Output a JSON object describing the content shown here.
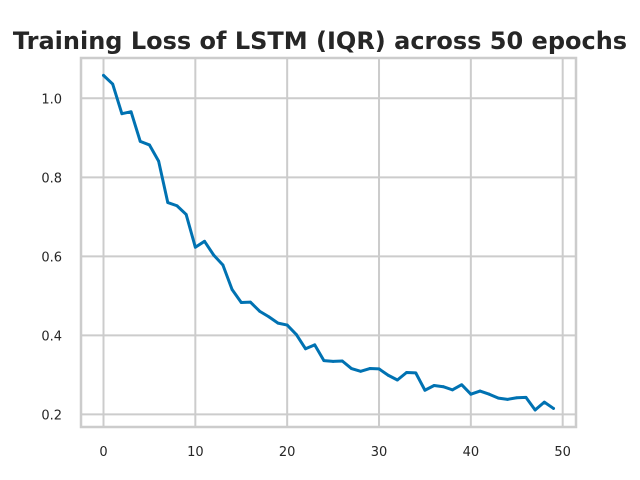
{
  "chart_data": {
    "type": "line",
    "title": "Training Loss of LSTM (IQR) across 50 epochs",
    "xlabel": "",
    "ylabel": "",
    "xlim": [
      -2.45,
      51.45
    ],
    "ylim": [
      0.168,
      1.102
    ],
    "xticks": [
      0,
      10,
      20,
      30,
      40,
      50
    ],
    "yticks": [
      0.2,
      0.4,
      0.6,
      0.8,
      1.0
    ],
    "xtick_labels": [
      "0",
      "10",
      "20",
      "30",
      "40",
      "50"
    ],
    "ytick_labels": [
      "0.2",
      "0.4",
      "0.6",
      "0.8",
      "1.0"
    ],
    "grid": true,
    "legend": "none",
    "series": [
      {
        "color": "#0072b2",
        "x": [
          0,
          1,
          2,
          3,
          4,
          5,
          6,
          7,
          8,
          9,
          10,
          11,
          12,
          13,
          14,
          15,
          16,
          17,
          18,
          19,
          20,
          21,
          22,
          23,
          24,
          25,
          26,
          27,
          28,
          29,
          30,
          31,
          32,
          33,
          34,
          35,
          36,
          37,
          38,
          39,
          40,
          41,
          42,
          43,
          44,
          45,
          46,
          47,
          48,
          49
        ],
        "values": [
          1.058,
          1.036,
          0.961,
          0.966,
          0.891,
          0.882,
          0.841,
          0.736,
          0.728,
          0.706,
          0.623,
          0.638,
          0.603,
          0.578,
          0.516,
          0.483,
          0.484,
          0.461,
          0.447,
          0.431,
          0.426,
          0.402,
          0.366,
          0.376,
          0.336,
          0.334,
          0.335,
          0.316,
          0.309,
          0.316,
          0.315,
          0.299,
          0.287,
          0.306,
          0.305,
          0.261,
          0.273,
          0.27,
          0.262,
          0.275,
          0.251,
          0.259,
          0.251,
          0.241,
          0.238,
          0.242,
          0.243,
          0.211,
          0.231,
          0.215
        ]
      }
    ]
  }
}
